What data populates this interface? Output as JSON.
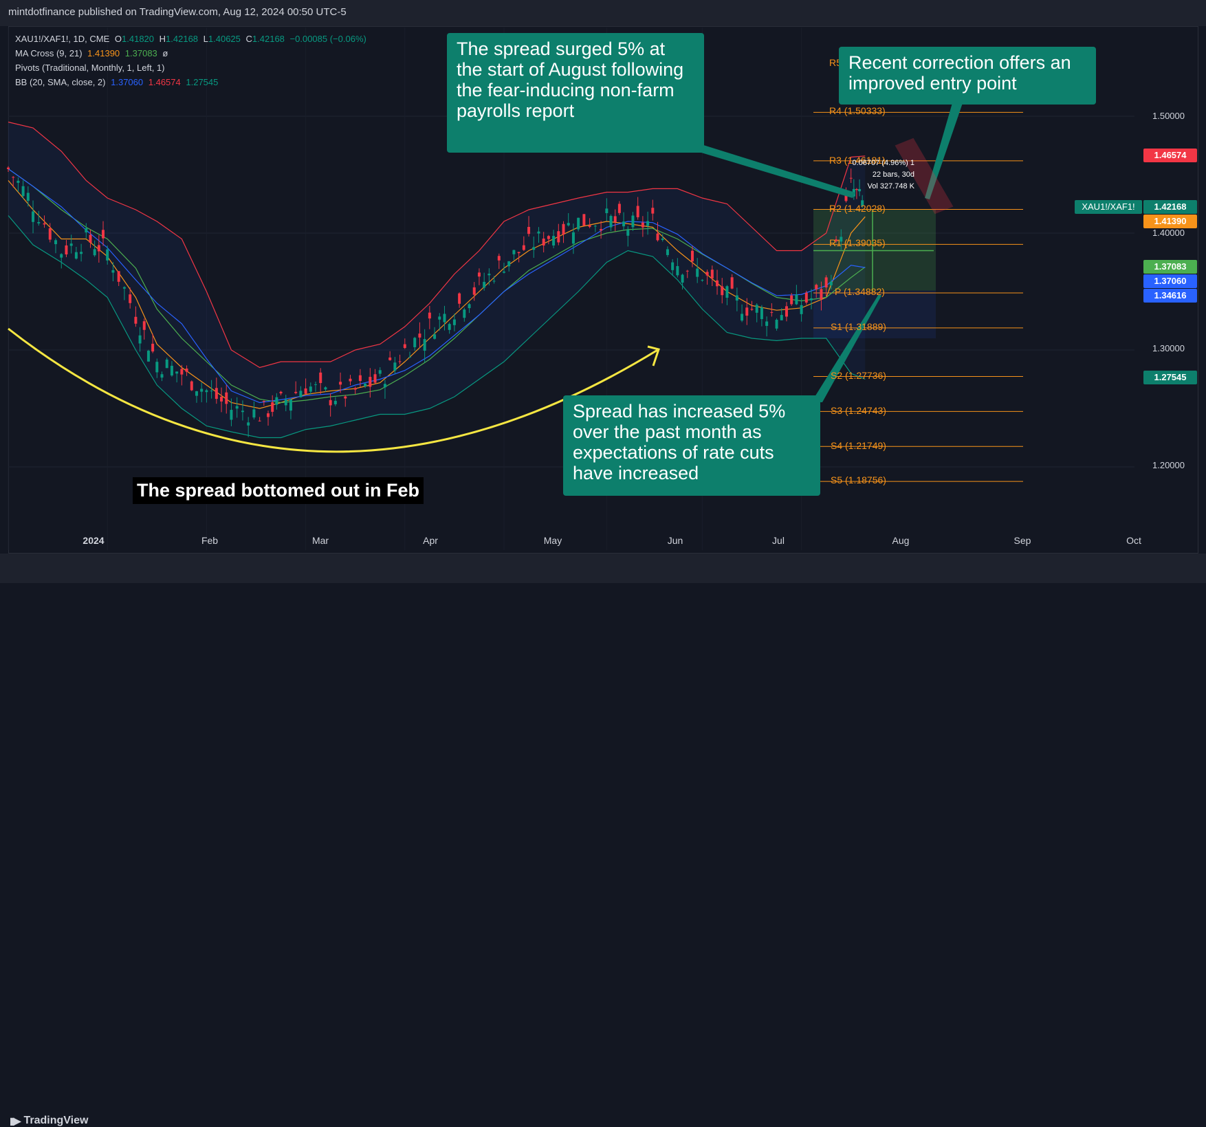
{
  "header": {
    "publisher": "mintdotfinance published on TradingView.com, Aug 12, 2024 00:50 UTC-5"
  },
  "legend": {
    "symbol": "XAU1!/XAF1!, 1D, CME",
    "ohlc": {
      "o_label": "O",
      "o": "1.41820",
      "h_label": "H",
      "h": "1.42168",
      "l_label": "L",
      "l": "1.40625",
      "c_label": "C",
      "c": "1.42168",
      "change": "−0.00085 (−0.06%)"
    },
    "ma_cross": {
      "label": "MA Cross (9, 21)",
      "v1": "1.41390",
      "v2": "1.37083",
      "v3": "ø"
    },
    "pivots": {
      "label": "Pivots (Traditional, Monthly, 1, Left, 1)"
    },
    "bb": {
      "label": "BB (20, SMA, close, 2)",
      "basis": "1.37060",
      "upper": "1.46574",
      "lower": "1.27545"
    }
  },
  "colors": {
    "bg": "#131722",
    "up": "#089981",
    "down": "#f23645",
    "bb_upper": "#f23645",
    "bb_lower": "#089981",
    "ma_fast": "#f7931a",
    "ma_slow": "#4caf50",
    "bb_basis": "#2962ff",
    "pivot": "#f7931a",
    "callout": "#0d7f6c",
    "arc": "#f5e642"
  },
  "annotations": {
    "spread_surged": "The spread surged 5% at the start of August following the fear-inducing non-farm payrolls report",
    "recent_correction": "Recent correction offers an improved entry point",
    "spread_increased": "Spread has increased 5% over the past month as expectations of rate cuts have increased",
    "bottomed": "The spread bottomed out in Feb"
  },
  "measure": {
    "line1": "0.06707 (4.96%) 1",
    "line2": "22 bars, 30d",
    "line3": "Vol 327.748 K"
  },
  "y_axis": {
    "ticks": [
      "1.50000",
      "1.40000",
      "1.30000",
      "1.20000"
    ]
  },
  "price_tags": {
    "symbol": "XAU1!/XAF1!",
    "t1": "1.46574",
    "t2": "1.42168",
    "t3": "1.41390",
    "t4": "1.37083",
    "t5": "1.37060",
    "t6": "1.34616",
    "t7": "1.27545"
  },
  "x_axis": {
    "labels": [
      "2024",
      "Feb",
      "Mar",
      "Apr",
      "May",
      "Jun",
      "Jul",
      "Aug",
      "Sep",
      "Oct"
    ]
  },
  "pivots": {
    "R5": "R5",
    "R4": "R4 (1.50333)",
    "R3": "R3 (1.46181)",
    "R2": "R2 (1.42028)",
    "R1": "R1 (1.39035)",
    "P": "P (1.34882)",
    "S1": "S1 (1.31889)",
    "S2": "S2 (1.27736)",
    "S3": "S3 (1.24743)",
    "S4": "S4 (1.21749)",
    "S5": "S5 (1.18756)"
  },
  "footer": {
    "brand": "TradingView"
  },
  "chart_data": {
    "type": "line",
    "title": "XAU1!/XAF1!, 1D, CME",
    "x": [
      "2023-12-11",
      "2023-12-18",
      "2023-12-26",
      "2024-01-02",
      "2024-01-08",
      "2024-01-16",
      "2024-01-22",
      "2024-01-29",
      "2024-02-05",
      "2024-02-12",
      "2024-02-20",
      "2024-02-26",
      "2024-03-04",
      "2024-03-11",
      "2024-03-18",
      "2024-03-25",
      "2024-04-01",
      "2024-04-08",
      "2024-04-15",
      "2024-04-22",
      "2024-04-29",
      "2024-05-06",
      "2024-05-13",
      "2024-05-20",
      "2024-05-28",
      "2024-06-03",
      "2024-06-10",
      "2024-06-17",
      "2024-06-24",
      "2024-07-01",
      "2024-07-08",
      "2024-07-15",
      "2024-07-22",
      "2024-07-29",
      "2024-08-05",
      "2024-08-09"
    ],
    "series": [
      {
        "name": "XAU1!/XAF1!",
        "values": [
          1.455,
          1.425,
          1.385,
          1.395,
          1.385,
          1.33,
          1.29,
          1.28,
          1.265,
          1.25,
          1.245,
          1.255,
          1.27,
          1.26,
          1.265,
          1.275,
          1.3,
          1.32,
          1.335,
          1.355,
          1.375,
          1.39,
          1.4,
          1.41,
          1.412,
          1.405,
          1.41,
          1.375,
          1.365,
          1.345,
          1.335,
          1.33,
          1.34,
          1.35,
          1.44,
          1.422
        ]
      },
      {
        "name": "BB upper",
        "values": [
          1.495,
          1.49,
          1.47,
          1.445,
          1.43,
          1.42,
          1.41,
          1.395,
          1.35,
          1.3,
          1.285,
          1.29,
          1.29,
          1.29,
          1.3,
          1.305,
          1.32,
          1.34,
          1.365,
          1.385,
          1.41,
          1.42,
          1.425,
          1.43,
          1.435,
          1.435,
          1.438,
          1.438,
          1.43,
          1.425,
          1.405,
          1.385,
          1.385,
          1.4,
          1.465,
          1.466
        ]
      },
      {
        "name": "BB lower",
        "values": [
          1.415,
          1.39,
          1.375,
          1.36,
          1.345,
          1.3,
          1.27,
          1.25,
          1.235,
          1.23,
          1.225,
          1.225,
          1.232,
          1.235,
          1.24,
          1.245,
          1.245,
          1.25,
          1.26,
          1.275,
          1.29,
          1.31,
          1.33,
          1.35,
          1.375,
          1.385,
          1.38,
          1.36,
          1.335,
          1.315,
          1.31,
          1.308,
          1.31,
          1.31,
          1.28,
          1.275
        ]
      },
      {
        "name": "MA 9",
        "values": [
          1.445,
          1.42,
          1.395,
          1.395,
          1.38,
          1.345,
          1.305,
          1.285,
          1.27,
          1.255,
          1.25,
          1.255,
          1.262,
          1.265,
          1.267,
          1.272,
          1.29,
          1.31,
          1.33,
          1.35,
          1.37,
          1.385,
          1.395,
          1.405,
          1.41,
          1.408,
          1.405,
          1.385,
          1.368,
          1.35,
          1.338,
          1.334,
          1.336,
          1.345,
          1.4,
          1.414
        ]
      },
      {
        "name": "MA 21",
        "values": [
          1.455,
          1.44,
          1.42,
          1.405,
          1.395,
          1.37,
          1.335,
          1.31,
          1.29,
          1.27,
          1.258,
          1.255,
          1.257,
          1.26,
          1.262,
          1.266,
          1.278,
          1.292,
          1.31,
          1.33,
          1.35,
          1.368,
          1.38,
          1.392,
          1.4,
          1.403,
          1.404,
          1.395,
          1.382,
          1.37,
          1.357,
          1.345,
          1.342,
          1.345,
          1.362,
          1.371
        ]
      }
    ],
    "pivot_levels": {
      "R4": 1.50333,
      "R3": 1.46181,
      "R2": 1.42028,
      "R1": 1.39035,
      "P": 1.34882,
      "S1": 1.31889,
      "S2": 1.27736,
      "S3": 1.24743,
      "S4": 1.21749,
      "S5": 1.18756
    },
    "ylim": [
      1.13,
      1.63
    ],
    "legend": "top-left",
    "grid": true
  }
}
